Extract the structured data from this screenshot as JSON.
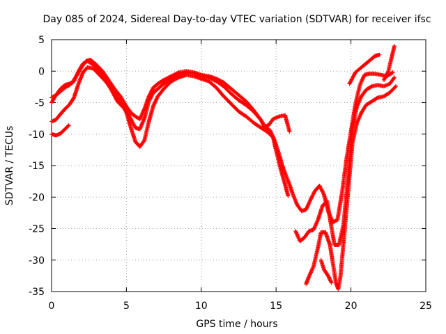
{
  "chart_data": {
    "type": "scatter",
    "title": "Day 085 of 2024, Sidereal Day-to-day VTEC variation (SDTVAR) for receiver ifsc",
    "xlabel": "GPS time / hours",
    "ylabel": "SDTVAR / TECUs",
    "xlim": [
      0,
      25
    ],
    "ylim": [
      -35,
      5
    ],
    "xticks": [
      0,
      5,
      10,
      15,
      20,
      25
    ],
    "yticks": [
      5,
      0,
      -5,
      -10,
      -15,
      -20,
      -25,
      -30,
      -35
    ],
    "grid": true,
    "legend": "none",
    "marker": "+",
    "color": "#ff0000",
    "series": [
      {
        "points": [
          [
            0,
            -10
          ],
          [
            0.3,
            -10.2
          ],
          [
            0.6,
            -9.9
          ],
          [
            0.9,
            -9.2
          ],
          [
            1.15,
            -8.6
          ]
        ]
      },
      {
        "points": [
          [
            0,
            -8
          ],
          [
            0.3,
            -7.7
          ],
          [
            0.6,
            -6.8
          ],
          [
            0.9,
            -6.0
          ],
          [
            1.2,
            -5.3
          ],
          [
            1.5,
            -4.2
          ],
          [
            1.8,
            -2.0
          ],
          [
            2.1,
            -0.2
          ],
          [
            2.4,
            0.6
          ],
          [
            2.8,
            0.4
          ],
          [
            3.2,
            -0.6
          ],
          [
            3.6,
            -1.6
          ],
          [
            4.0,
            -2.8
          ],
          [
            4.4,
            -4.2
          ],
          [
            4.8,
            -5.6
          ],
          [
            5.0,
            -6.6
          ],
          [
            5.3,
            -9.0
          ],
          [
            5.6,
            -11.2
          ],
          [
            5.9,
            -12.0
          ],
          [
            6.2,
            -11.0
          ],
          [
            6.5,
            -8.0
          ],
          [
            6.8,
            -5.5
          ],
          [
            7.1,
            -4.0
          ],
          [
            7.5,
            -2.8
          ],
          [
            8.0,
            -1.6
          ],
          [
            8.5,
            -1.0
          ],
          [
            9.0,
            -0.6
          ],
          [
            9.5,
            -0.8
          ],
          [
            10.0,
            -1.2
          ],
          [
            10.5,
            -1.6
          ],
          [
            11.0,
            -2.6
          ],
          [
            11.5,
            -4.0
          ],
          [
            12.0,
            -5.2
          ],
          [
            12.5,
            -6.4
          ],
          [
            13.0,
            -7.2
          ],
          [
            13.5,
            -8.2
          ],
          [
            14.0,
            -9.0
          ],
          [
            14.4,
            -9.6
          ],
          [
            14.8,
            -10.5
          ],
          [
            15.0,
            -12.6
          ],
          [
            15.3,
            -15.5
          ],
          [
            15.6,
            -18.0
          ],
          [
            15.8,
            -19.8
          ]
        ]
      },
      {
        "points": [
          [
            0,
            -5
          ],
          [
            0.3,
            -3.8
          ],
          [
            0.6,
            -2.8
          ],
          [
            0.9,
            -2.2
          ],
          [
            1.2,
            -2.0
          ],
          [
            1.5,
            -1.6
          ],
          [
            1.8,
            0.0
          ],
          [
            2.1,
            1.2
          ],
          [
            2.4,
            1.6
          ],
          [
            2.8,
            1.0
          ],
          [
            3.2,
            0.0
          ],
          [
            3.6,
            -1.4
          ],
          [
            4.0,
            -3.0
          ],
          [
            4.4,
            -4.8
          ],
          [
            4.8,
            -5.8
          ],
          [
            5.0,
            -6.2
          ],
          [
            5.3,
            -7.6
          ],
          [
            5.6,
            -9.0
          ],
          [
            5.9,
            -9.2
          ],
          [
            6.2,
            -7.5
          ],
          [
            6.5,
            -4.8
          ],
          [
            6.8,
            -3.4
          ],
          [
            7.1,
            -2.8
          ],
          [
            7.5,
            -2.0
          ],
          [
            8.0,
            -1.2
          ],
          [
            8.5,
            -0.6
          ],
          [
            9.0,
            -0.2
          ],
          [
            9.5,
            -0.4
          ],
          [
            10.0,
            -0.8
          ],
          [
            10.5,
            -1.0
          ],
          [
            11.0,
            -1.6
          ],
          [
            11.5,
            -2.4
          ],
          [
            12.0,
            -3.6
          ],
          [
            12.5,
            -4.6
          ],
          [
            13.0,
            -5.4
          ],
          [
            13.5,
            -6.4
          ],
          [
            14.0,
            -7.8
          ],
          [
            14.2,
            -8.8
          ],
          [
            14.5,
            -8.6
          ],
          [
            14.8,
            -7.6
          ],
          [
            15.2,
            -7.2
          ],
          [
            15.6,
            -7.0
          ],
          [
            15.9,
            -9.6
          ]
        ]
      },
      {
        "points": [
          [
            0,
            -4.2
          ],
          [
            0.3,
            -3.8
          ],
          [
            0.6,
            -3.2
          ],
          [
            0.9,
            -2.6
          ],
          [
            1.2,
            -2.2
          ],
          [
            1.4,
            -1.8
          ],
          [
            1.6,
            -1.0
          ],
          [
            2.0,
            0.6
          ],
          [
            2.3,
            1.6
          ],
          [
            2.6,
            1.8
          ],
          [
            3.0,
            1.0
          ],
          [
            3.4,
            0.0
          ],
          [
            3.8,
            -1.4
          ],
          [
            4.2,
            -2.8
          ],
          [
            4.6,
            -4.0
          ],
          [
            5.0,
            -5.6
          ],
          [
            5.3,
            -6.6
          ],
          [
            5.6,
            -7.2
          ],
          [
            5.9,
            -7.6
          ],
          [
            6.2,
            -6.0
          ],
          [
            6.5,
            -4.0
          ],
          [
            6.8,
            -2.6
          ],
          [
            7.1,
            -2.0
          ],
          [
            7.5,
            -1.4
          ],
          [
            8.0,
            -0.8
          ],
          [
            8.5,
            -0.2
          ],
          [
            9.0,
            0.0
          ],
          [
            9.5,
            -0.2
          ],
          [
            10.0,
            -0.6
          ],
          [
            10.5,
            -0.8
          ],
          [
            11.0,
            -1.2
          ],
          [
            11.5,
            -1.8
          ],
          [
            12.0,
            -2.8
          ],
          [
            12.5,
            -3.8
          ],
          [
            13.0,
            -4.8
          ],
          [
            13.5,
            -6.2
          ],
          [
            14.0,
            -7.8
          ],
          [
            14.3,
            -9.0
          ],
          [
            14.6,
            -9.4
          ],
          [
            14.9,
            -11.0
          ],
          [
            15.2,
            -13.2
          ],
          [
            15.5,
            -15.6
          ],
          [
            15.8,
            -17.4
          ],
          [
            16.1,
            -19.4
          ],
          [
            16.4,
            -21.2
          ],
          [
            16.7,
            -22.2
          ],
          [
            17.0,
            -22.0
          ],
          [
            17.3,
            -20.4
          ],
          [
            17.6,
            -19.0
          ],
          [
            17.9,
            -18.2
          ],
          [
            18.2,
            -19.6
          ],
          [
            18.5,
            -22.4
          ],
          [
            18.8,
            -24.0
          ],
          [
            19.1,
            -23.6
          ],
          [
            19.4,
            -19.4
          ],
          [
            19.7,
            -14.0
          ],
          [
            20.0,
            -9.6
          ],
          [
            20.3,
            -5.2
          ],
          [
            20.6,
            -2.2
          ],
          [
            20.9,
            -0.6
          ],
          [
            21.2,
            -0.4
          ],
          [
            21.6,
            -0.4
          ],
          [
            22.0,
            -0.6
          ],
          [
            22.4,
            -0.8
          ],
          [
            22.8,
            -0.2
          ]
        ]
      },
      {
        "points": [
          [
            16.3,
            -25.4
          ],
          [
            16.6,
            -27.0
          ],
          [
            16.9,
            -26.4
          ],
          [
            17.2,
            -25.4
          ],
          [
            17.5,
            -25.2
          ],
          [
            17.8,
            -23.6
          ],
          [
            18.1,
            -21.4
          ],
          [
            18.4,
            -20.6
          ],
          [
            18.6,
            -23.4
          ],
          [
            18.9,
            -27.6
          ],
          [
            19.2,
            -27.6
          ],
          [
            19.5,
            -24.4
          ],
          [
            19.8,
            -17.0
          ],
          [
            20.1,
            -9.0
          ],
          [
            20.4,
            -5.6
          ],
          [
            20.7,
            -4.0
          ],
          [
            21.0,
            -3.0
          ],
          [
            21.4,
            -2.4
          ],
          [
            21.8,
            -2.2
          ],
          [
            22.2,
            -2.4
          ],
          [
            22.6,
            -2.0
          ],
          [
            22.9,
            -1.0
          ]
        ]
      },
      {
        "points": [
          [
            17.0,
            -33.8
          ],
          [
            17.2,
            -32.6
          ],
          [
            17.5,
            -31.0
          ],
          [
            17.8,
            -28.0
          ],
          [
            18.0,
            -25.6
          ],
          [
            18.3,
            -25.6
          ],
          [
            18.6,
            -27.6
          ],
          [
            18.8,
            -30.6
          ],
          [
            19.0,
            -33.6
          ],
          [
            19.15,
            -34.6
          ],
          [
            19.3,
            -32.6
          ],
          [
            19.5,
            -27.4
          ],
          [
            19.8,
            -19.4
          ],
          [
            20.1,
            -11.4
          ],
          [
            20.4,
            -8.2
          ],
          [
            20.7,
            -6.6
          ],
          [
            21.0,
            -5.4
          ],
          [
            21.4,
            -4.8
          ],
          [
            21.8,
            -4.2
          ],
          [
            22.2,
            -4.0
          ],
          [
            22.6,
            -3.4
          ],
          [
            23.0,
            -2.4
          ]
        ]
      },
      {
        "points": [
          [
            18.0,
            -30.0
          ],
          [
            18.2,
            -31.5
          ],
          [
            18.5,
            -32.6
          ],
          [
            18.7,
            -33.6
          ]
        ]
      },
      {
        "points": [
          [
            19.9,
            -2.0
          ],
          [
            20.3,
            -0.2
          ],
          [
            20.8,
            0.8
          ],
          [
            21.2,
            1.6
          ],
          [
            21.6,
            2.4
          ],
          [
            21.9,
            2.6
          ]
        ]
      },
      {
        "points": [
          [
            22.2,
            -1.4
          ],
          [
            22.5,
            0.0
          ],
          [
            22.7,
            2.0
          ],
          [
            22.9,
            4.0
          ]
        ]
      }
    ]
  }
}
